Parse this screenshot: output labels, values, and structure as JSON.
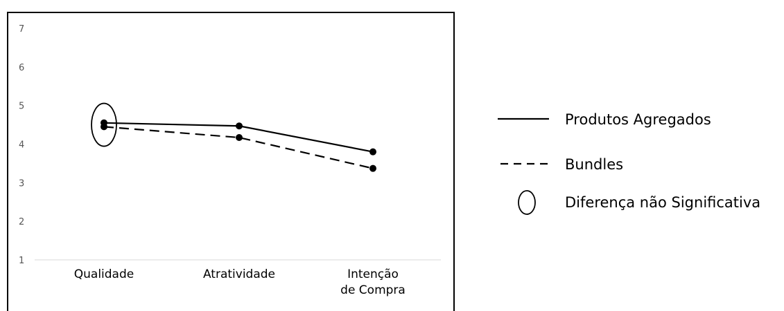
{
  "chart_data": {
    "type": "line",
    "categories": [
      "Qualidade",
      "Atratividade",
      "Intenção de Compra"
    ],
    "category_lines": [
      [
        "Qualidade"
      ],
      [
        "Atratividade"
      ],
      [
        "Intenção",
        "de Compra"
      ]
    ],
    "yticks": [
      "1",
      "2",
      "3",
      "4",
      "5",
      "6",
      "7"
    ],
    "ylim": [
      1,
      7
    ],
    "series": [
      {
        "name": "Produtos Agregados",
        "values": [
          4.55,
          4.47,
          3.8
        ],
        "style": "solid"
      },
      {
        "name": "Bundles",
        "values": [
          4.45,
          4.17,
          3.37
        ],
        "style": "dashed"
      }
    ],
    "annotations": [
      {
        "type": "ellipse",
        "category": "Qualidade",
        "label": "Diferença não Significativa"
      }
    ],
    "legend_position": "right",
    "grid": false,
    "colors": {
      "line": "#000000",
      "axis": "#d9d9d9",
      "tick": "#555555"
    }
  }
}
